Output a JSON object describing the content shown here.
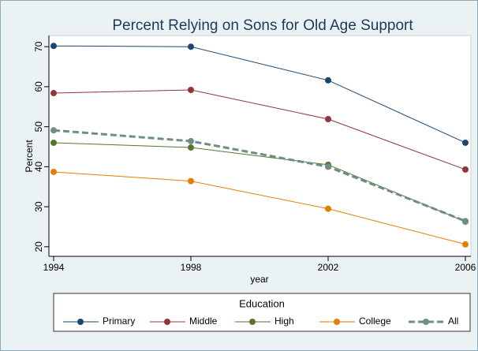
{
  "chart_data": {
    "type": "line",
    "title": "Percent Relying on Sons for Old Age Support",
    "x_label": "year",
    "y_label": "Percent",
    "x": [
      1994,
      1998,
      2002,
      2006
    ],
    "xlim": [
      1994,
      2006
    ],
    "xticks": [
      1994,
      1998,
      2002,
      2006
    ],
    "ylim": [
      17.6,
      72.8
    ],
    "yticks": [
      20,
      30,
      40,
      50,
      60,
      70
    ],
    "legend_title": "Education",
    "legend_position": "bottom",
    "series": [
      {
        "name": "Primary",
        "color": "#1a476f",
        "values": [
          70.2,
          70.0,
          61.6,
          46.0
        ]
      },
      {
        "name": "Middle",
        "color": "#90353b",
        "values": [
          58.4,
          59.2,
          51.9,
          39.3
        ]
      },
      {
        "name": "High",
        "color": "#55752f",
        "values": [
          46.0,
          44.8,
          40.5,
          26.3
        ]
      },
      {
        "name": "College",
        "color": "#e37e00",
        "values": [
          38.7,
          36.4,
          29.5,
          20.6
        ]
      },
      {
        "name": "All",
        "color": "#6e8e84",
        "values": [
          49.1,
          46.4,
          40.0,
          26.4
        ],
        "style": "dashed"
      }
    ]
  }
}
